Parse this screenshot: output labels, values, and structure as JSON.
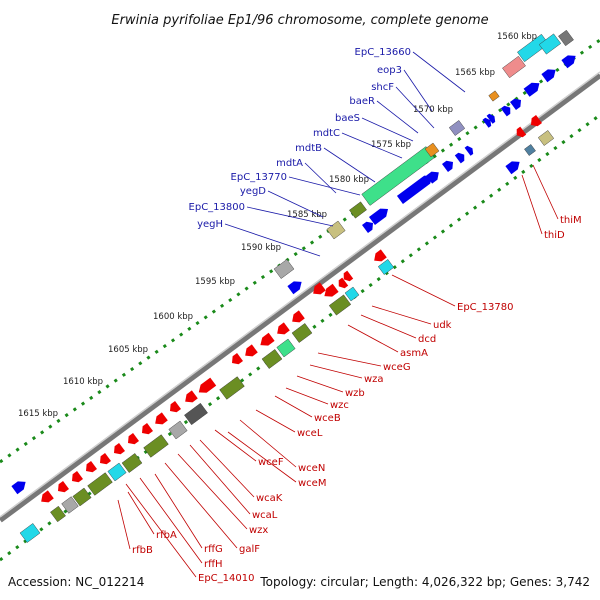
{
  "title": "Erwinia pyrifoliae Ep1/96 chromosome, complete genome",
  "footer": {
    "accession": "Accession: NC_012214",
    "summary": "Topology: circular; Length: 4,026,322 bp; Genes: 3,742"
  },
  "kbp_ticks": [
    {
      "label": "1560 kbp"
    },
    {
      "label": "1565 kbp"
    },
    {
      "label": "1570 kbp"
    },
    {
      "label": "1575 kbp"
    },
    {
      "label": "1580 kbp"
    },
    {
      "label": "1585 kbp"
    },
    {
      "label": "1590 kbp"
    },
    {
      "label": "1595 kbp"
    },
    {
      "label": "1600 kbp"
    },
    {
      "label": "1605 kbp"
    },
    {
      "label": "1610 kbp"
    },
    {
      "label": "1615 kbp"
    }
  ],
  "upper_labels": [
    {
      "text": "EpC_13660"
    },
    {
      "text": "eop3"
    },
    {
      "text": "shcF"
    },
    {
      "text": "baeR"
    },
    {
      "text": "baeS"
    },
    {
      "text": "mdtC"
    },
    {
      "text": "mdtB"
    },
    {
      "text": "mdtA"
    },
    {
      "text": "EpC_13770"
    },
    {
      "text": "yegD"
    },
    {
      "text": "EpC_13800"
    },
    {
      "text": "yegH"
    }
  ],
  "lower_labels": [
    {
      "text": "thiM"
    },
    {
      "text": "thiD"
    },
    {
      "text": "EpC_13780"
    },
    {
      "text": "udk"
    },
    {
      "text": "dcd"
    },
    {
      "text": "asmA"
    },
    {
      "text": "wceG"
    },
    {
      "text": "wza"
    },
    {
      "text": "wzb"
    },
    {
      "text": "wzc"
    },
    {
      "text": "wceB"
    },
    {
      "text": "wceL"
    },
    {
      "text": "wceF"
    },
    {
      "text": "wceN"
    },
    {
      "text": "wceM"
    },
    {
      "text": "wcaK"
    },
    {
      "text": "wcaL"
    },
    {
      "text": "wzx"
    },
    {
      "text": "galF"
    },
    {
      "text": "rffG"
    },
    {
      "text": "rffH"
    },
    {
      "text": "EpC_14010"
    },
    {
      "text": "rfbA"
    },
    {
      "text": "rfbB"
    }
  ],
  "colors": {
    "forward_gene": "#0000ee",
    "reverse_gene": "#ee0000",
    "cds_green": "#6b8e23",
    "cds_light_green": "#3ee08a",
    "cds_cyan": "#22d8e8",
    "cds_grey": "#a8a8a8",
    "cds_pink": "#ef8c8c",
    "cds_khaki": "#c8c080",
    "backbone": "#7a7a7a",
    "gc_dots": "#1a8a1a",
    "label_blue": "#1a1aa8",
    "label_red": "#c00000"
  }
}
